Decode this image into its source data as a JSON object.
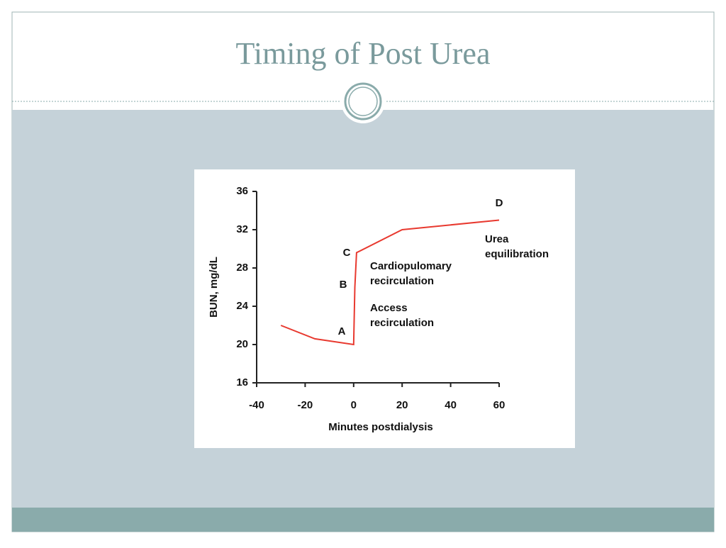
{
  "slide_title": "Timing of Post Urea",
  "chart_data": {
    "type": "line",
    "x_label": "Minutes postdialysis",
    "y_label": "BUN, mg/dL",
    "x": [
      -30,
      -16,
      0,
      0.5,
      1.2,
      20,
      60
    ],
    "values": [
      22,
      20.6,
      20,
      26,
      29.6,
      32,
      33
    ],
    "color": "#e8392f",
    "xlim": [
      -40,
      60
    ],
    "xticks": [
      -40,
      -20,
      0,
      20,
      40,
      60
    ],
    "ylim": [
      16,
      36
    ],
    "yticks": [
      16,
      20,
      24,
      28,
      32,
      36
    ],
    "annotations": [
      [
        "A"
      ],
      [
        "B"
      ],
      [
        "C"
      ],
      [
        "D"
      ],
      [
        "Cardiopulomary",
        "recirculation"
      ],
      [
        "Access",
        "recirculation"
      ],
      [
        "Urea",
        "equilibration"
      ]
    ]
  }
}
